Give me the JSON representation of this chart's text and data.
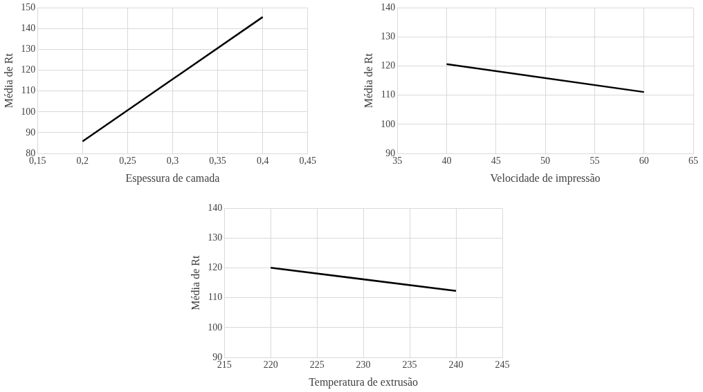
{
  "chart_data": [
    {
      "type": "line",
      "xlabel": "Espessura de camada",
      "ylabel": "Média de Rt",
      "x": [
        0.2,
        0.4
      ],
      "values": [
        85.8,
        145.6
      ],
      "color": "#000000",
      "xlim": [
        0.15,
        0.45
      ],
      "xticks": [
        {
          "value": 0.15,
          "label": "0,15"
        },
        {
          "value": 0.2,
          "label": "0,2"
        },
        {
          "value": 0.25,
          "label": "0,25"
        },
        {
          "value": 0.3,
          "label": "0,3"
        },
        {
          "value": 0.35,
          "label": "0,35"
        },
        {
          "value": 0.4,
          "label": "0,4"
        },
        {
          "value": 0.45,
          "label": "0,45"
        }
      ],
      "ylim": [
        80,
        150
      ],
      "yticks": [
        80,
        90,
        100,
        110,
        120,
        130,
        140,
        150
      ],
      "grid": true
    },
    {
      "type": "line",
      "xlabel": "Velocidade de impressão",
      "ylabel": "Média de Rt",
      "x": [
        40,
        60
      ],
      "values": [
        120.7,
        111.1
      ],
      "color": "#000000",
      "xlim": [
        35,
        65
      ],
      "xticks": [
        35,
        40,
        45,
        50,
        55,
        60,
        65
      ],
      "ylim": [
        90,
        140
      ],
      "yticks": [
        90,
        100,
        110,
        120,
        130,
        140
      ],
      "grid": true
    },
    {
      "type": "line",
      "xlabel": "Temperatura de extrusão",
      "ylabel": "Média de Rt",
      "x": [
        220,
        240
      ],
      "values": [
        120.1,
        112.3
      ],
      "color": "#000000",
      "xlim": [
        215,
        245
      ],
      "xticks": [
        215,
        220,
        225,
        230,
        235,
        240,
        245
      ],
      "ylim": [
        90,
        140
      ],
      "yticks": [
        90,
        100,
        110,
        120,
        130,
        140
      ],
      "grid": true
    }
  ]
}
